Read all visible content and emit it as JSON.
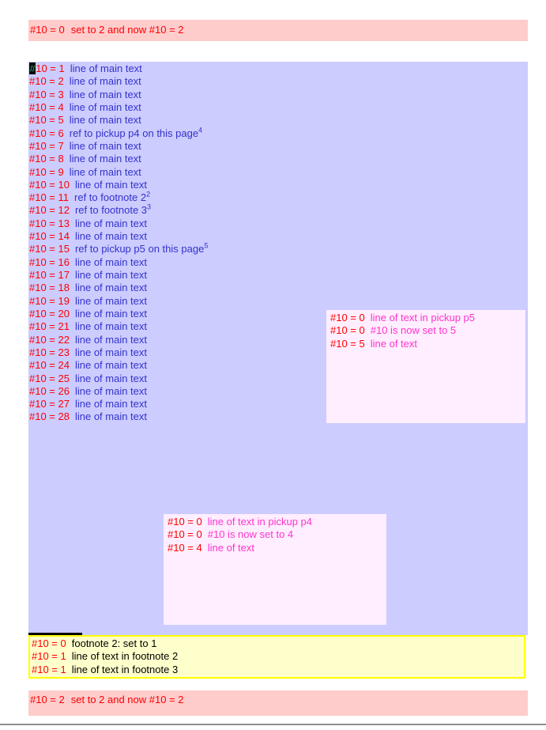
{
  "colors": {
    "red": "#ff0000",
    "blue": "#3333cc",
    "magenta": "#ff33cc",
    "main_bg": "#ccccff",
    "bar_bg": "#ffcccc",
    "pickup_bg": "#ffeeff",
    "footnote_bg": "#ffffcc",
    "footnote_border": "#ffff00",
    "cursor_bg": "#000000",
    "cursor_fg": "#2fa36e",
    "divider": "#8f8f8f"
  },
  "top_bar": {
    "counter": "#10 = 0",
    "text": "set to 2 and now #10 = 2"
  },
  "main": {
    "lines": [
      {
        "counter": "#10 = 1",
        "text": "line of main text",
        "cursor": true
      },
      {
        "counter": "#10 = 2",
        "text": "line of main text"
      },
      {
        "counter": "#10 = 3",
        "text": "line of main text"
      },
      {
        "counter": "#10 = 4",
        "text": "line of main text"
      },
      {
        "counter": "#10 = 5",
        "text": "line of main text"
      },
      {
        "counter": "#10 = 6",
        "text": "ref to pickup p4 on this page",
        "sup": "4"
      },
      {
        "counter": "#10 = 7",
        "text": "line of main text"
      },
      {
        "counter": "#10 = 8",
        "text": "line of main text"
      },
      {
        "counter": "#10 = 9",
        "text": "line of main text"
      },
      {
        "counter": "#10 = 10",
        "text": "line of main text"
      },
      {
        "counter": "#10 = 11",
        "text": "ref to footnote 2",
        "sup": "2"
      },
      {
        "counter": "#10 = 12",
        "text": "ref to footnote 3",
        "sup": "3"
      },
      {
        "counter": "#10 = 13",
        "text": "line of main text"
      },
      {
        "counter": "#10 = 14",
        "text": "line of main text"
      },
      {
        "counter": "#10 = 15",
        "text": "ref to pickup p5 on this page",
        "sup": "5"
      },
      {
        "counter": "#10 = 16",
        "text": "line of main text"
      },
      {
        "counter": "#10 = 17",
        "text": "line of main text"
      },
      {
        "counter": "#10 = 18",
        "text": "line of main text"
      },
      {
        "counter": "#10 = 19",
        "text": "line of main text"
      },
      {
        "counter": "#10 = 20",
        "text": "line of main text"
      },
      {
        "counter": "#10 = 21",
        "text": "line of main text"
      },
      {
        "counter": "#10 = 22",
        "text": "line of main text"
      },
      {
        "counter": "#10 = 23",
        "text": "line of main text"
      },
      {
        "counter": "#10 = 24",
        "text": "line of main text"
      },
      {
        "counter": "#10 = 25",
        "text": "line of main text"
      },
      {
        "counter": "#10 = 26",
        "text": "line of main text"
      },
      {
        "counter": "#10 = 27",
        "text": "line of main text"
      },
      {
        "counter": "#10 = 28",
        "text": "line of main text"
      }
    ]
  },
  "pickup_p5": {
    "lines": [
      {
        "counter": "#10 = 0",
        "text": "line of text in pickup p5"
      },
      {
        "counter": "#10 = 0",
        "text": "#10 is now set to 5"
      },
      {
        "counter": "#10 = 5",
        "text": "line of text"
      }
    ]
  },
  "pickup_p4": {
    "lines": [
      {
        "counter": "#10 = 0",
        "text": "line of text in pickup p4"
      },
      {
        "counter": "#10 = 0",
        "text": "#10 is now set to 4"
      },
      {
        "counter": "#10 = 4",
        "text": "line of text"
      }
    ]
  },
  "footnote": {
    "lines": [
      {
        "counter": "#10 = 0",
        "text": "footnote 2: set to 1"
      },
      {
        "counter": "#10 = 1",
        "text": "line of text in footnote 2"
      },
      {
        "counter": "#10 = 1",
        "text": "line of text in footnote 3"
      }
    ]
  },
  "bottom_bar": {
    "counter": "#10 = 2",
    "text": "set to 2 and now #10 = 2"
  }
}
